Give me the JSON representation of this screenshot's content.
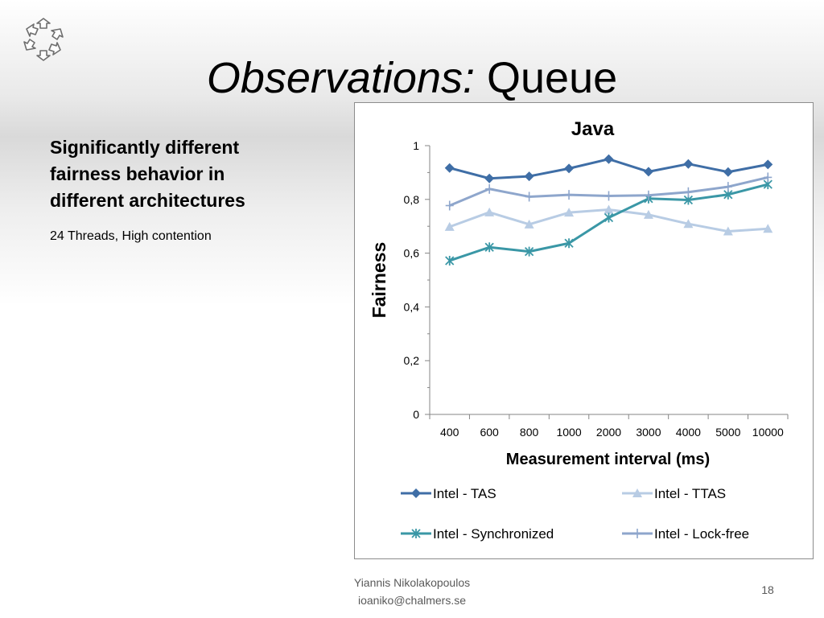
{
  "slide": {
    "title_italic": "Observations:",
    "title_rest": "Queue",
    "lead_text": "Significantly different fairness behavior in different architectures",
    "sub_text": "24 Threads, High contention",
    "footer_name": "Yiannis Nikolakopoulos",
    "footer_email": "ioaniko@chalmers.se",
    "page_number": "18",
    "logo_icon": "hexagon-arrows-logo-icon"
  },
  "chart_data": {
    "type": "line",
    "title": "Java",
    "xlabel": "Measurement interval (ms)",
    "ylabel": "Fairness",
    "categories": [
      "400",
      "600",
      "800",
      "1000",
      "2000",
      "3000",
      "4000",
      "5000",
      "10000"
    ],
    "ylim": [
      0,
      1
    ],
    "yticks": [
      "0",
      "0,2",
      "0,4",
      "0,6",
      "0,8",
      "1"
    ],
    "grid": false,
    "legend_position": "bottom",
    "series": [
      {
        "name": "Intel - TAS",
        "marker": "diamond",
        "color": "#3f6ea6",
        "values": [
          0.917,
          0.878,
          0.886,
          0.915,
          0.95,
          0.903,
          0.932,
          0.902,
          0.93
        ]
      },
      {
        "name": "Intel - TTAS",
        "marker": "triangle",
        "color": "#b8cce4",
        "values": [
          0.698,
          0.752,
          0.707,
          0.751,
          0.762,
          0.743,
          0.709,
          0.681,
          0.691
        ]
      },
      {
        "name": "Intel - Synchronized",
        "marker": "asterisk",
        "color": "#3a97a6",
        "values": [
          0.572,
          0.622,
          0.606,
          0.637,
          0.732,
          0.803,
          0.798,
          0.818,
          0.856
        ]
      },
      {
        "name": "Intel - Lock-free",
        "marker": "plus",
        "color": "#8ea6cc",
        "values": [
          0.777,
          0.839,
          0.81,
          0.817,
          0.813,
          0.815,
          0.827,
          0.847,
          0.882
        ]
      }
    ]
  }
}
